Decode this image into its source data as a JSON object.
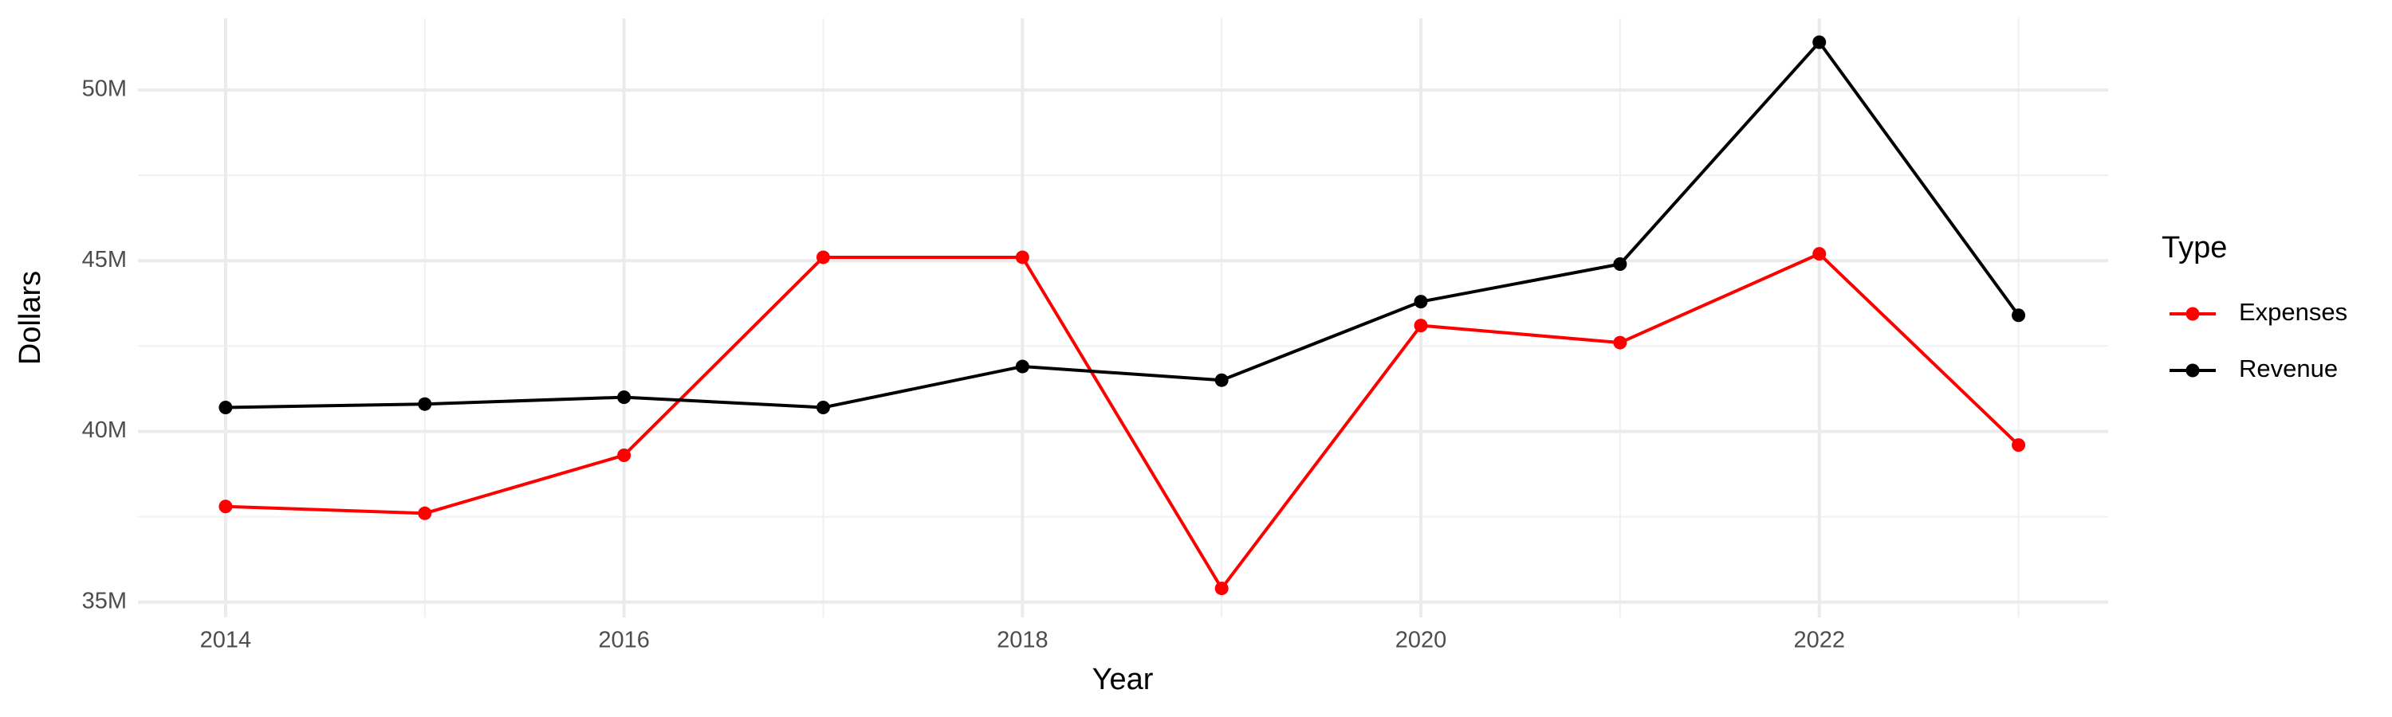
{
  "chart_data": {
    "type": "line",
    "x_label": "Year",
    "y_label": "Dollars",
    "legend_title": "Type",
    "x": [
      2014,
      2015,
      2016,
      2017,
      2018,
      2019,
      2020,
      2021,
      2022,
      2023
    ],
    "series": [
      {
        "name": "Expenses",
        "color": "#ff0000",
        "values": [
          37800000,
          37600000,
          39300000,
          45100000,
          45100000,
          35400000,
          43100000,
          42600000,
          45200000,
          39600000
        ]
      },
      {
        "name": "Revenue",
        "color": "#000000",
        "values": [
          40700000,
          40800000,
          41000000,
          40700000,
          41900000,
          41500000,
          43800000,
          44900000,
          51400000,
          43400000
        ]
      }
    ],
    "xlim": [
      2013.56,
      2023.45
    ],
    "xticks": [
      2014,
      2016,
      2018,
      2020,
      2022
    ],
    "ylim": [
      34550000,
      52100000
    ],
    "yticks": [
      {
        "value": 35000000,
        "label": "35M"
      },
      {
        "value": 40000000,
        "label": "40M"
      },
      {
        "value": 45000000,
        "label": "45M"
      },
      {
        "value": 50000000,
        "label": "50M"
      }
    ],
    "grid": true,
    "legend": "right"
  }
}
